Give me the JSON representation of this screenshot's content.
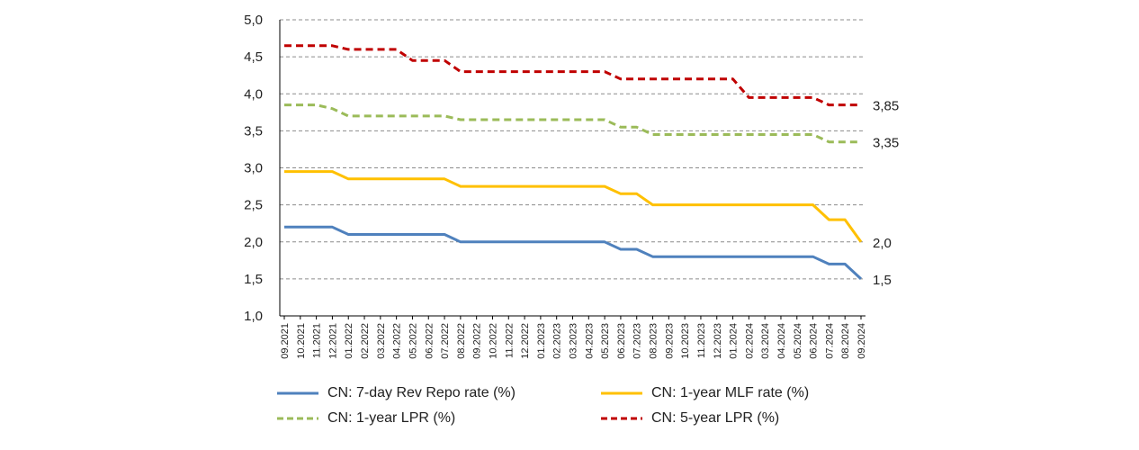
{
  "chart_data": {
    "type": "line",
    "title": "",
    "xlabel": "",
    "ylabel": "",
    "ylim": [
      1.0,
      5.0
    ],
    "ytick_labels": [
      "1,0",
      "1,5",
      "2,0",
      "2,5",
      "3,0",
      "3,5",
      "4,0",
      "4,5",
      "5,0"
    ],
    "grid": "horizontal dashed",
    "legend_position": "bottom",
    "categories": [
      "09.2021",
      "10.2021",
      "11.2021",
      "12.2021",
      "01.2022",
      "02.2022",
      "03.2022",
      "04.2022",
      "05.2022",
      "06.2022",
      "07.2022",
      "08.2022",
      "09.2022",
      "10.2022",
      "11.2022",
      "12.2022",
      "01.2023",
      "02.2023",
      "03.2023",
      "04.2023",
      "05.2023",
      "06.2023",
      "07.2023",
      "08.2023",
      "09.2023",
      "10.2023",
      "11.2023",
      "12.2023",
      "01.2024",
      "02.2024",
      "03.2024",
      "04.2024",
      "05.2024",
      "06.2024",
      "07.2024",
      "08.2024",
      "09.2024"
    ],
    "series": [
      {
        "name": "CN: 7-day Rev Repo rate (%)",
        "color": "#4F81BD",
        "style": "solid",
        "values": [
          2.2,
          2.2,
          2.2,
          2.2,
          2.1,
          2.1,
          2.1,
          2.1,
          2.1,
          2.1,
          2.1,
          2.0,
          2.0,
          2.0,
          2.0,
          2.0,
          2.0,
          2.0,
          2.0,
          2.0,
          2.0,
          1.9,
          1.9,
          1.8,
          1.8,
          1.8,
          1.8,
          1.8,
          1.8,
          1.8,
          1.8,
          1.8,
          1.8,
          1.8,
          1.7,
          1.7,
          1.5
        ],
        "end_label": "1,5"
      },
      {
        "name": "CN: 1-year MLF rate (%)",
        "color": "#FFC000",
        "style": "solid",
        "values": [
          2.95,
          2.95,
          2.95,
          2.95,
          2.85,
          2.85,
          2.85,
          2.85,
          2.85,
          2.85,
          2.85,
          2.75,
          2.75,
          2.75,
          2.75,
          2.75,
          2.75,
          2.75,
          2.75,
          2.75,
          2.75,
          2.65,
          2.65,
          2.5,
          2.5,
          2.5,
          2.5,
          2.5,
          2.5,
          2.5,
          2.5,
          2.5,
          2.5,
          2.5,
          2.3,
          2.3,
          2.0
        ],
        "end_label": "2,0"
      },
      {
        "name": "CN: 1-year LPR (%)",
        "color": "#9BBB59",
        "style": "dashed",
        "values": [
          3.85,
          3.85,
          3.85,
          3.8,
          3.7,
          3.7,
          3.7,
          3.7,
          3.7,
          3.7,
          3.7,
          3.65,
          3.65,
          3.65,
          3.65,
          3.65,
          3.65,
          3.65,
          3.65,
          3.65,
          3.65,
          3.55,
          3.55,
          3.45,
          3.45,
          3.45,
          3.45,
          3.45,
          3.45,
          3.45,
          3.45,
          3.45,
          3.45,
          3.45,
          3.35,
          3.35,
          3.35
        ],
        "end_label": "3,35"
      },
      {
        "name": "CN: 5-year LPR (%)",
        "color": "#C00000",
        "style": "dashed",
        "values": [
          4.65,
          4.65,
          4.65,
          4.65,
          4.6,
          4.6,
          4.6,
          4.6,
          4.45,
          4.45,
          4.45,
          4.3,
          4.3,
          4.3,
          4.3,
          4.3,
          4.3,
          4.3,
          4.3,
          4.3,
          4.3,
          4.2,
          4.2,
          4.2,
          4.2,
          4.2,
          4.2,
          4.2,
          4.2,
          3.95,
          3.95,
          3.95,
          3.95,
          3.95,
          3.85,
          3.85,
          3.85
        ],
        "end_label": "3,85"
      }
    ]
  }
}
